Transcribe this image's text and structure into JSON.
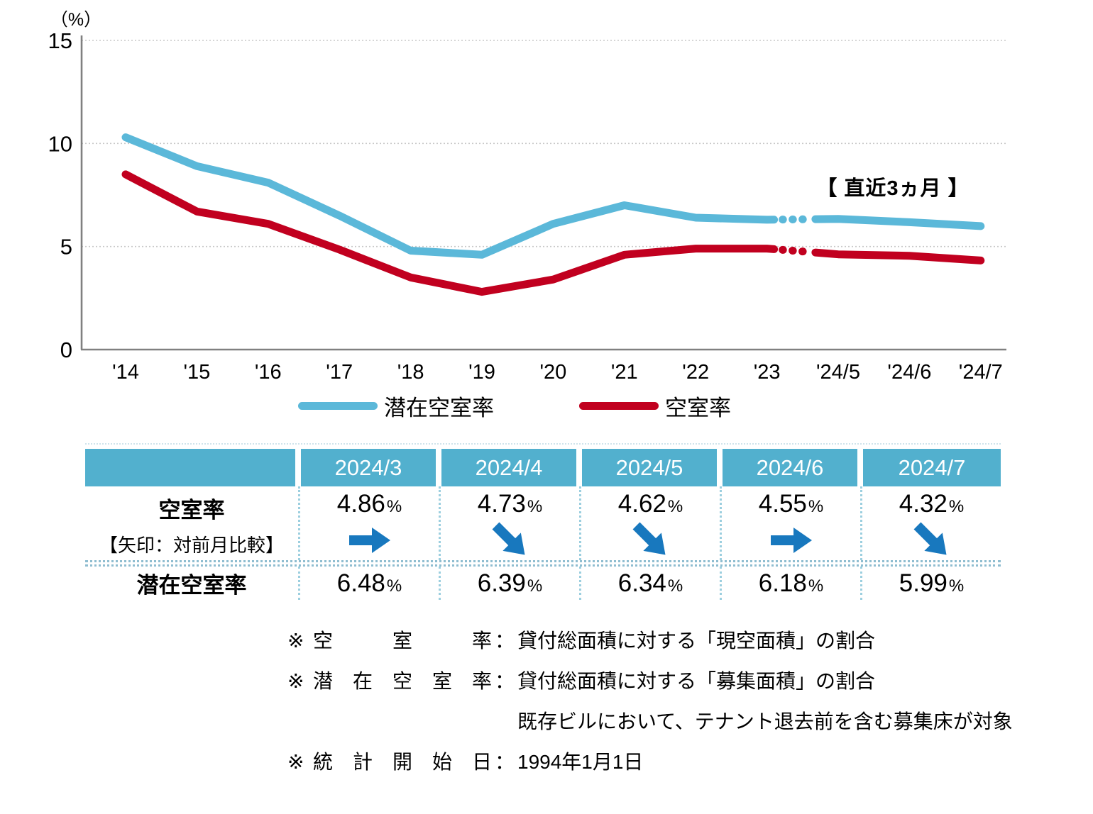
{
  "chart_data": {
    "type": "line",
    "unit_label": "（%）",
    "categories": [
      "'14",
      "'15",
      "'16",
      "'17",
      "'18",
      "'19",
      "'20",
      "'21",
      "'22",
      "'23",
      "'24/5",
      "'24/6",
      "'24/7"
    ],
    "series": [
      {
        "name": "潜在空室率",
        "color": "#5BB8D9",
        "values": [
          10.3,
          8.9,
          8.1,
          6.5,
          4.8,
          4.6,
          6.1,
          7.0,
          6.4,
          6.3,
          6.34,
          6.18,
          5.99
        ]
      },
      {
        "name": "空室率",
        "color": "#C1001F",
        "values": [
          8.5,
          6.7,
          6.1,
          4.85,
          3.5,
          2.8,
          3.4,
          4.6,
          4.9,
          4.9,
          4.62,
          4.55,
          4.32
        ]
      }
    ],
    "gap_after_index": 9,
    "annotation": "【 直近3ヵ月 】",
    "ylim": [
      0,
      15
    ],
    "yticks": [
      0,
      5,
      10,
      15
    ],
    "grid": "dotted horizontal",
    "legend_position": "bottom"
  },
  "table": {
    "columns": [
      "2024/3",
      "2024/4",
      "2024/5",
      "2024/6",
      "2024/7"
    ],
    "rows": [
      {
        "label": "空室率",
        "sublabel": "【矢印：対前月比較】",
        "values": [
          "4.86",
          "4.73",
          "4.62",
          "4.55",
          "4.32"
        ],
        "unit": "%",
        "arrows": [
          "right",
          "down-right",
          "down-right",
          "right",
          "down-right"
        ]
      },
      {
        "label": "潜在空室率",
        "values": [
          "6.48",
          "6.39",
          "6.34",
          "6.18",
          "5.99"
        ],
        "unit": "%"
      }
    ]
  },
  "footnotes": [
    {
      "marker": "※",
      "term": "空室率",
      "separator": "：",
      "text": "貸付総面積に対する「現空面積」の割合"
    },
    {
      "marker": "※",
      "term": "潜在空室率",
      "separator": "：",
      "text": "貸付総面積に対する「募集面積」の割合"
    },
    {
      "marker": "",
      "term": "",
      "separator": "",
      "text": "既存ビルにおいて、テナント退去前を含む募集床が対象"
    },
    {
      "marker": "※",
      "term": "統計開始日",
      "separator": "：",
      "text": "1994年1月1日"
    }
  ],
  "colors": {
    "line_blue": "#5BB8D9",
    "line_red": "#C1001F",
    "table_header_blue": "#52B0CE",
    "arrow_blue": "#1878BE",
    "column_divider_blue": "#9CCFDF",
    "row_divider_blue": "#8FBDD0",
    "table_top_line": "#CFE3EC",
    "grid_gray": "#C8C8C8",
    "axis_gray": "#808080"
  }
}
